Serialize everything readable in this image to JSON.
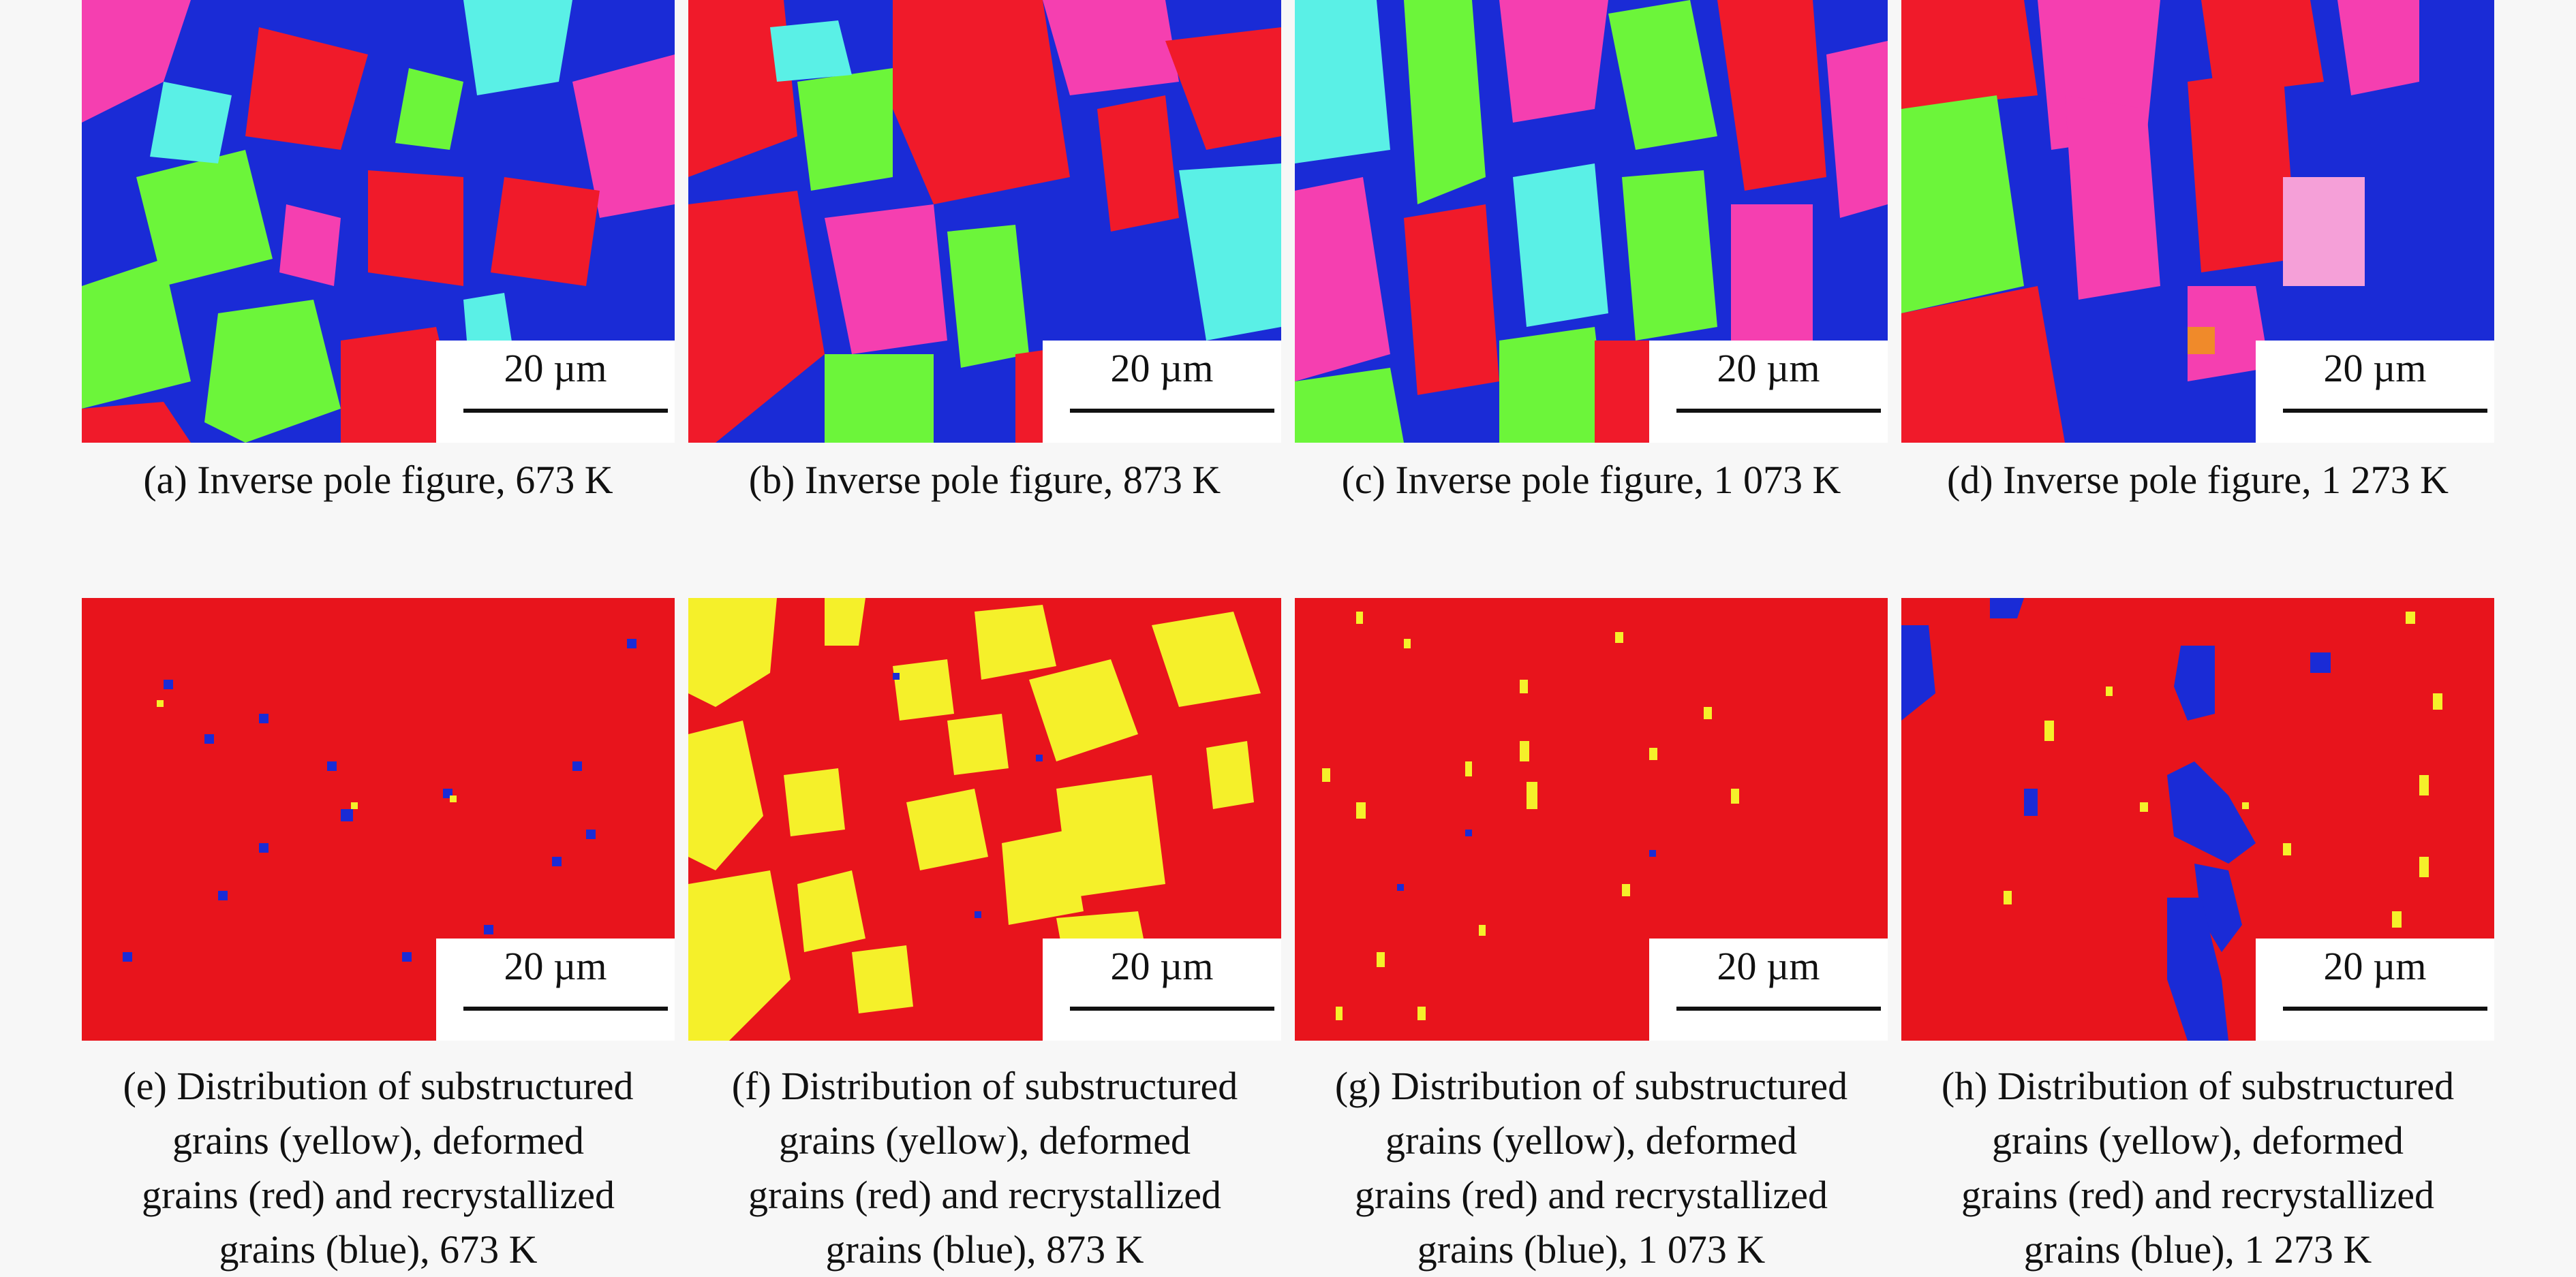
{
  "scale_label": "20 µm",
  "colors": {
    "deformed": "#e8141c",
    "substructured": "#f5f02a",
    "recrystallized": "#1a2bd6",
    "ipf_red": "#f01a2a",
    "ipf_green": "#6cf53a",
    "ipf_blue": "#1a2bd6",
    "ipf_magenta": "#f53fb0",
    "ipf_cyan": "#5af0e6"
  },
  "ipf_panels": [
    {
      "caption": "(a) Inverse pole figure, 673 K"
    },
    {
      "caption": "(b) Inverse pole figure, 873 K"
    },
    {
      "caption": "(c) Inverse pole figure, 1 073 K"
    },
    {
      "caption": "(d) Inverse pole figure, 1 273 K"
    }
  ],
  "dist_panels": [
    {
      "caption_lines": [
        "(e) Distribution of substructured",
        "grains (yellow), deformed",
        "grains (red) and recrystallized",
        "grains (blue), 673 K"
      ]
    },
    {
      "caption_lines": [
        "(f) Distribution of substructured",
        "grains (yellow), deformed",
        "grains (red) and recrystallized",
        "grains (blue), 873 K"
      ]
    },
    {
      "caption_lines": [
        "(g) Distribution of substructured",
        "grains (yellow), deformed",
        "grains (red) and recrystallized",
        "grains (blue), 1 073 K"
      ]
    },
    {
      "caption_lines": [
        "(h) Distribution of substructured",
        "grains (yellow), deformed",
        "grains (red) and recrystallized",
        "grains (blue), 1 273 K"
      ]
    }
  ]
}
